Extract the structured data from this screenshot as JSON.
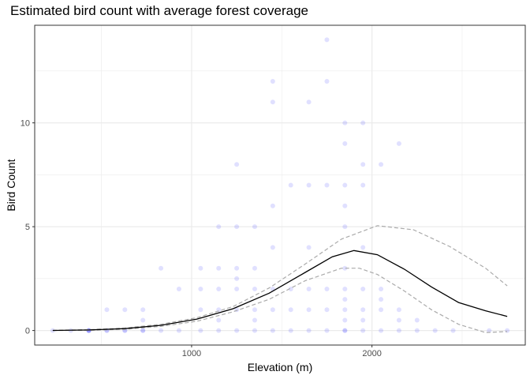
{
  "chart_data": {
    "type": "scatter",
    "title": "Estimated bird count with average forest coverage",
    "xlabel": "Elevation (m)",
    "ylabel": "Bird Count",
    "xlim": [
      130,
      2850
    ],
    "ylim": [
      -0.7,
      14.7
    ],
    "x_ticks": [
      1000,
      2000
    ],
    "x_minor": [
      500,
      1500,
      2500
    ],
    "y_ticks": [
      0,
      5,
      10
    ],
    "y_minor": [
      2.5,
      7.5,
      12.5
    ],
    "grid": true,
    "legend": "none",
    "colors": {
      "points": "#0000ff",
      "fit": "#000000",
      "ci": "#aaaaaa",
      "panel_border": "#333333",
      "grid": "#ebebeb"
    },
    "points": [
      [
        230,
        0
      ],
      [
        330,
        0
      ],
      [
        430,
        0
      ],
      [
        430,
        0
      ],
      [
        430,
        0
      ],
      [
        430,
        0
      ],
      [
        530,
        0
      ],
      [
        530,
        0
      ],
      [
        530,
        1
      ],
      [
        630,
        0
      ],
      [
        630,
        0
      ],
      [
        630,
        1
      ],
      [
        730,
        0
      ],
      [
        730,
        0
      ],
      [
        730,
        0.5
      ],
      [
        730,
        1
      ],
      [
        830,
        0
      ],
      [
        830,
        3
      ],
      [
        930,
        0
      ],
      [
        930,
        2
      ],
      [
        1050,
        0
      ],
      [
        1050,
        1
      ],
      [
        1050,
        2
      ],
      [
        1050,
        3
      ],
      [
        1150,
        0
      ],
      [
        1150,
        0.5
      ],
      [
        1150,
        1
      ],
      [
        1150,
        2
      ],
      [
        1150,
        3
      ],
      [
        1150,
        5
      ],
      [
        1250,
        0
      ],
      [
        1250,
        1
      ],
      [
        1250,
        2
      ],
      [
        1250,
        2.5
      ],
      [
        1250,
        3
      ],
      [
        1250,
        5
      ],
      [
        1250,
        8
      ],
      [
        1350,
        0
      ],
      [
        1350,
        0.5
      ],
      [
        1350,
        1
      ],
      [
        1350,
        2
      ],
      [
        1350,
        3
      ],
      [
        1350,
        5
      ],
      [
        1450,
        0
      ],
      [
        1450,
        1
      ],
      [
        1450,
        2
      ],
      [
        1450,
        4
      ],
      [
        1450,
        6
      ],
      [
        1450,
        11
      ],
      [
        1450,
        12
      ],
      [
        1550,
        0
      ],
      [
        1550,
        1
      ],
      [
        1550,
        2
      ],
      [
        1550,
        7
      ],
      [
        1650,
        0
      ],
      [
        1650,
        1
      ],
      [
        1650,
        2
      ],
      [
        1650,
        4
      ],
      [
        1650,
        7
      ],
      [
        1650,
        11
      ],
      [
        1750,
        0
      ],
      [
        1750,
        1
      ],
      [
        1750,
        2
      ],
      [
        1750,
        7
      ],
      [
        1750,
        12
      ],
      [
        1750,
        14
      ],
      [
        1850,
        0
      ],
      [
        1850,
        0
      ],
      [
        1850,
        0.5
      ],
      [
        1850,
        1
      ],
      [
        1850,
        1.5
      ],
      [
        1850,
        2
      ],
      [
        1850,
        3
      ],
      [
        1850,
        5
      ],
      [
        1850,
        6
      ],
      [
        1850,
        7
      ],
      [
        1850,
        9
      ],
      [
        1850,
        10
      ],
      [
        1950,
        0
      ],
      [
        1950,
        0.5
      ],
      [
        1950,
        1
      ],
      [
        1950,
        2
      ],
      [
        1950,
        4
      ],
      [
        1950,
        7
      ],
      [
        1950,
        8
      ],
      [
        1950,
        10
      ],
      [
        2050,
        0
      ],
      [
        2050,
        1
      ],
      [
        2050,
        1.5
      ],
      [
        2050,
        2
      ],
      [
        2050,
        8
      ],
      [
        2150,
        0
      ],
      [
        2150,
        0.5
      ],
      [
        2150,
        1
      ],
      [
        2150,
        9
      ],
      [
        2250,
        0
      ],
      [
        2250,
        0.5
      ],
      [
        2350,
        0
      ],
      [
        2450,
        0
      ],
      [
        2650,
        0
      ],
      [
        2750,
        0
      ]
    ],
    "fit_line": [
      [
        230,
        0.005
      ],
      [
        430,
        0.025
      ],
      [
        630,
        0.09
      ],
      [
        830,
        0.25
      ],
      [
        1030,
        0.55
      ],
      [
        1230,
        1.05
      ],
      [
        1430,
        1.8
      ],
      [
        1630,
        2.8
      ],
      [
        1780,
        3.55
      ],
      [
        1900,
        3.85
      ],
      [
        2030,
        3.65
      ],
      [
        2180,
        2.95
      ],
      [
        2330,
        2.1
      ],
      [
        2480,
        1.35
      ],
      [
        2630,
        0.95
      ],
      [
        2750,
        0.68
      ]
    ],
    "ci_upper": [
      [
        230,
        0.01
      ],
      [
        430,
        0.04
      ],
      [
        630,
        0.12
      ],
      [
        830,
        0.3
      ],
      [
        1030,
        0.62
      ],
      [
        1230,
        1.15
      ],
      [
        1430,
        2.05
      ],
      [
        1630,
        3.2
      ],
      [
        1830,
        4.4
      ],
      [
        2030,
        5.05
      ],
      [
        2230,
        4.85
      ],
      [
        2430,
        4.05
      ],
      [
        2630,
        3.0
      ],
      [
        2750,
        2.15
      ]
    ],
    "ci_lower": [
      [
        230,
        0.0
      ],
      [
        430,
        0.01
      ],
      [
        630,
        0.06
      ],
      [
        830,
        0.2
      ],
      [
        1030,
        0.45
      ],
      [
        1230,
        0.9
      ],
      [
        1430,
        1.5
      ],
      [
        1630,
        2.4
      ],
      [
        1830,
        3.0
      ],
      [
        1930,
        3.0
      ],
      [
        2030,
        2.7
      ],
      [
        2180,
        1.9
      ],
      [
        2330,
        1.0
      ],
      [
        2480,
        0.3
      ],
      [
        2630,
        -0.1
      ],
      [
        2750,
        -0.05
      ]
    ]
  }
}
